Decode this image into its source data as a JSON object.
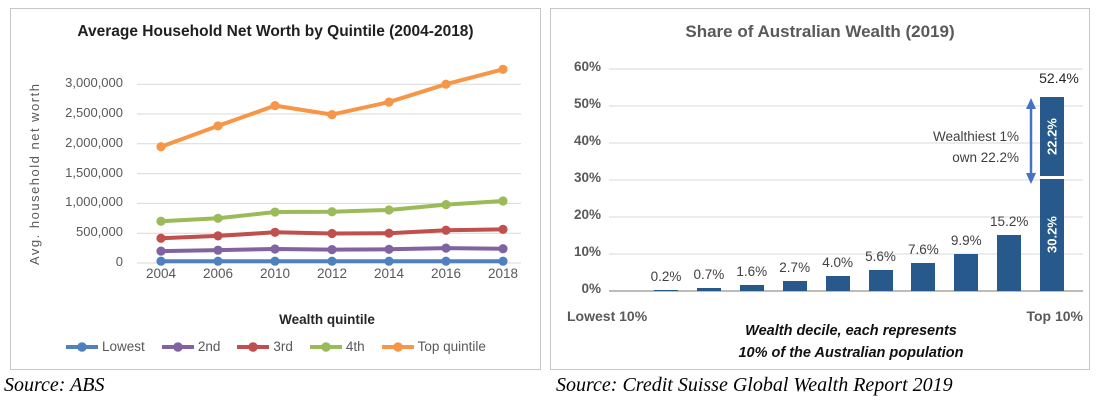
{
  "sources": {
    "left": "Source: ABS",
    "right": "Source: Credit Suisse Global Wealth Report 2019"
  },
  "colors": {
    "gridline": "#d9d9d9",
    "axis_line": "#a6a6a6",
    "bar": "#27598C",
    "arrow": "#4472C4",
    "panel_border": "#c6c6c6",
    "tick_text": "#595959",
    "data_label_text": "#404040"
  },
  "chart_data": [
    {
      "type": "line",
      "title": "Average Household Net Worth by Quintile (2004-2018)",
      "xlabel": "Wealth quintile",
      "ylabel": "Avg. household net worth",
      "categories": [
        "2004",
        "2006",
        "2010",
        "2012",
        "2014",
        "2016",
        "2018"
      ],
      "series": [
        {
          "name": "Lowest",
          "color": "#4F81BD",
          "values": [
            30000,
            30000,
            30000,
            30000,
            30000,
            30000,
            30000
          ]
        },
        {
          "name": "2nd",
          "color": "#8064A2",
          "values": [
            200000,
            215000,
            235000,
            225000,
            230000,
            250000,
            240000
          ]
        },
        {
          "name": "3rd",
          "color": "#C0504D",
          "values": [
            415000,
            455000,
            515000,
            495000,
            500000,
            550000,
            565000
          ]
        },
        {
          "name": "4th",
          "color": "#9BBB59",
          "values": [
            700000,
            750000,
            855000,
            860000,
            890000,
            980000,
            1040000
          ]
        },
        {
          "name": "Top quintile",
          "color": "#F79646",
          "values": [
            1950000,
            2300000,
            2640000,
            2490000,
            2700000,
            3000000,
            3250000
          ]
        }
      ],
      "ylim": [
        0,
        3450000
      ],
      "yticks": [
        0,
        500000,
        1000000,
        1500000,
        2000000,
        2500000,
        3000000
      ],
      "ytick_labels": [
        "0",
        "500,000",
        "1,000,000",
        "1,500,000",
        "2,000,000",
        "2,500,000",
        "3,000,000"
      ],
      "grid": "horizontal",
      "legend_position": "bottom"
    },
    {
      "type": "bar",
      "title": "Share of Australian Wealth (2019)",
      "values": [
        0.2,
        0.7,
        1.6,
        2.7,
        4.0,
        5.6,
        7.6,
        9.9,
        15.2,
        52.4
      ],
      "data_labels": [
        "0.2%",
        "0.7%",
        "1.6%",
        "2.7%",
        "4.0%",
        "5.6%",
        "7.6%",
        "9.9%",
        "15.2%"
      ],
      "top_bar": {
        "total_label": "52.4%",
        "segments": [
          {
            "value": 30.2,
            "label": "30.2%"
          },
          {
            "value": 22.2,
            "label": "22.2%"
          }
        ]
      },
      "annotation": {
        "line1": "Wealthiest 1%",
        "line2": "own 22.2%"
      },
      "x_left_label": "Lowest 10%",
      "x_right_label": "Top 10%",
      "footnote_line1": "Wealth decile, each represents",
      "footnote_line2": "10% of the Australian population",
      "ylim": [
        0,
        60
      ],
      "yticks": [
        0,
        10,
        20,
        30,
        40,
        50,
        60
      ],
      "ytick_labels": [
        "0%",
        "10%",
        "20%",
        "30%",
        "40%",
        "50%",
        "60%"
      ],
      "grid": "horizontal",
      "legend_position": "none"
    }
  ]
}
